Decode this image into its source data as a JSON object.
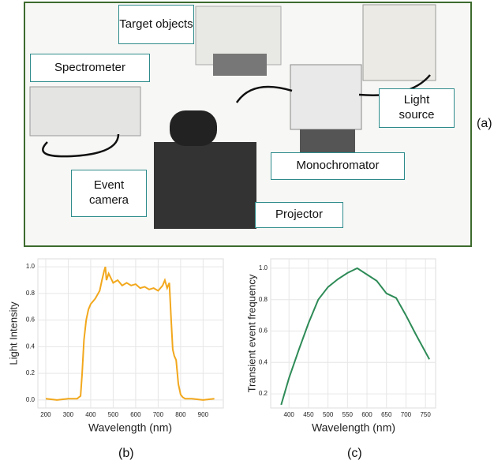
{
  "figure": {
    "photo_labels": [
      "Target objects",
      "Spectrometer",
      "Light source",
      "Monochromator",
      "Event camera",
      "Projector"
    ],
    "panel_labels": [
      "(a)",
      "(b)",
      "(c)"
    ]
  },
  "chart_data": [
    {
      "type": "line",
      "xlabel": "Wavelength (nm)",
      "ylabel": "Light Intensity",
      "color": "#f2a81d",
      "grid": true,
      "x": [
        200,
        250,
        300,
        340,
        355,
        362,
        370,
        380,
        390,
        400,
        420,
        440,
        450,
        460,
        465,
        470,
        480,
        500,
        520,
        540,
        560,
        580,
        600,
        620,
        640,
        660,
        680,
        700,
        720,
        730,
        740,
        750,
        758,
        765,
        772,
        780,
        790,
        800,
        810,
        820,
        850,
        900,
        950
      ],
      "values": [
        0.01,
        0.0,
        0.01,
        0.01,
        0.03,
        0.2,
        0.45,
        0.6,
        0.68,
        0.72,
        0.76,
        0.82,
        0.9,
        0.97,
        1.0,
        0.9,
        0.95,
        0.88,
        0.9,
        0.86,
        0.88,
        0.86,
        0.87,
        0.84,
        0.85,
        0.83,
        0.84,
        0.82,
        0.86,
        0.9,
        0.84,
        0.88,
        0.6,
        0.38,
        0.33,
        0.3,
        0.12,
        0.04,
        0.02,
        0.01,
        0.01,
        0.0,
        0.01
      ],
      "xlim": [
        165,
        990
      ],
      "ylim": [
        -0.06,
        1.06
      ],
      "xticks": [
        200,
        300,
        400,
        500,
        600,
        700,
        800,
        900
      ],
      "yticks": [
        {
          "value": 0,
          "label": "0.0"
        },
        0.2,
        0.4,
        0.6,
        0.8,
        {
          "value": 1,
          "label": "1.0"
        }
      ]
    },
    {
      "type": "line",
      "xlabel": "Wavelength (nm)",
      "ylabel": "Transient event frequency",
      "color": "#2e8b57",
      "grid": true,
      "x": [
        380,
        400,
        425,
        450,
        475,
        500,
        525,
        550,
        575,
        600,
        625,
        650,
        675,
        700,
        725,
        760
      ],
      "values": [
        0.13,
        0.3,
        0.48,
        0.65,
        0.8,
        0.88,
        0.93,
        0.97,
        1.0,
        0.96,
        0.92,
        0.84,
        0.81,
        0.7,
        0.58,
        0.42
      ],
      "xlim": [
        353,
        776
      ],
      "ylim": [
        0.11,
        1.06
      ],
      "xticks": [
        400,
        450,
        500,
        550,
        600,
        650,
        700,
        750
      ],
      "yticks": [
        0.2,
        0.4,
        0.6,
        0.8,
        {
          "value": 1,
          "label": "1.0"
        }
      ]
    }
  ]
}
